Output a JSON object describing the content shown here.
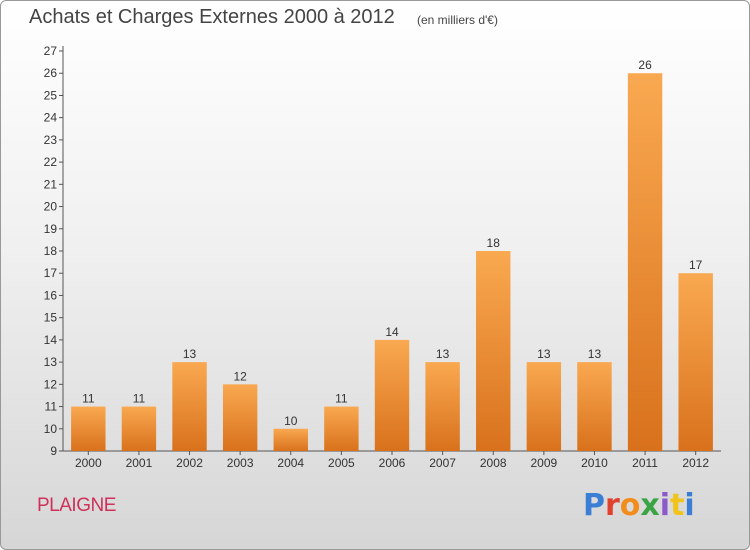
{
  "chart_data": {
    "type": "bar",
    "title": "Achats et Charges Externes 2000 à 2012",
    "subtitle": "(en milliers d'€)",
    "categories": [
      "2000",
      "2001",
      "2002",
      "2003",
      "2004",
      "2005",
      "2006",
      "2007",
      "2008",
      "2009",
      "2010",
      "2011",
      "2012"
    ],
    "values": [
      11,
      11,
      13,
      12,
      10,
      11,
      14,
      13,
      18,
      13,
      13,
      26,
      17
    ],
    "ylim": [
      9,
      27
    ],
    "yticks": [
      9,
      10,
      11,
      12,
      13,
      14,
      15,
      16,
      17,
      18,
      19,
      20,
      21,
      22,
      23,
      24,
      25,
      26,
      27
    ],
    "grid": false,
    "bar_color": "#e98326",
    "bar_color_light": "#f9a951"
  },
  "commune": "PLAIGNE",
  "logo": {
    "text": "Proxiti",
    "colors": [
      "#3a7fd5",
      "#e0412f",
      "#f28c1a",
      "#3aa442",
      "#8c5bc9",
      "#f0c419",
      "#3a7fd5"
    ]
  }
}
